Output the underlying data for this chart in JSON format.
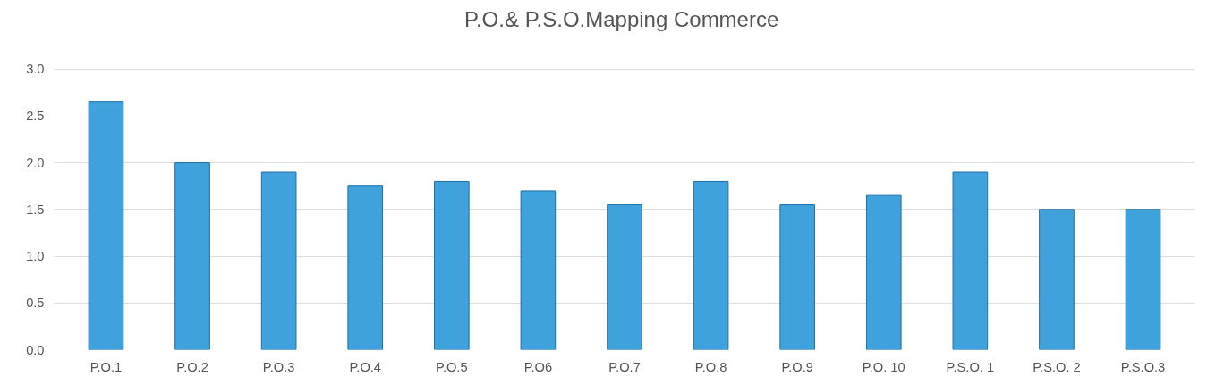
{
  "chart_data": {
    "type": "bar",
    "title": "P.O.& P.S.O.Mapping  Commerce",
    "categories": [
      "P.O.1",
      "P.O.2",
      "P.O.3",
      "P.O.4",
      "P.O.5",
      "P.O6",
      "P.O.7",
      "P.O.8",
      "P.O.9",
      "P.O. 10",
      "P.S.O. 1",
      "P.S.O. 2",
      "P.S.O.3"
    ],
    "values": [
      2.65,
      2.0,
      1.9,
      1.75,
      1.8,
      1.7,
      1.55,
      1.8,
      1.55,
      1.65,
      1.9,
      1.5,
      1.5
    ],
    "color": "#3fa2dc",
    "ylim": [
      0,
      3.0
    ],
    "yticks": [
      {
        "value": 0,
        "label": "0.0"
      },
      0.5,
      {
        "value": 1,
        "label": "1.0"
      },
      1.5,
      {
        "value": 2,
        "label": "2.0"
      },
      2.5,
      {
        "value": 3,
        "label": "3.0"
      }
    ],
    "grid": "y"
  }
}
